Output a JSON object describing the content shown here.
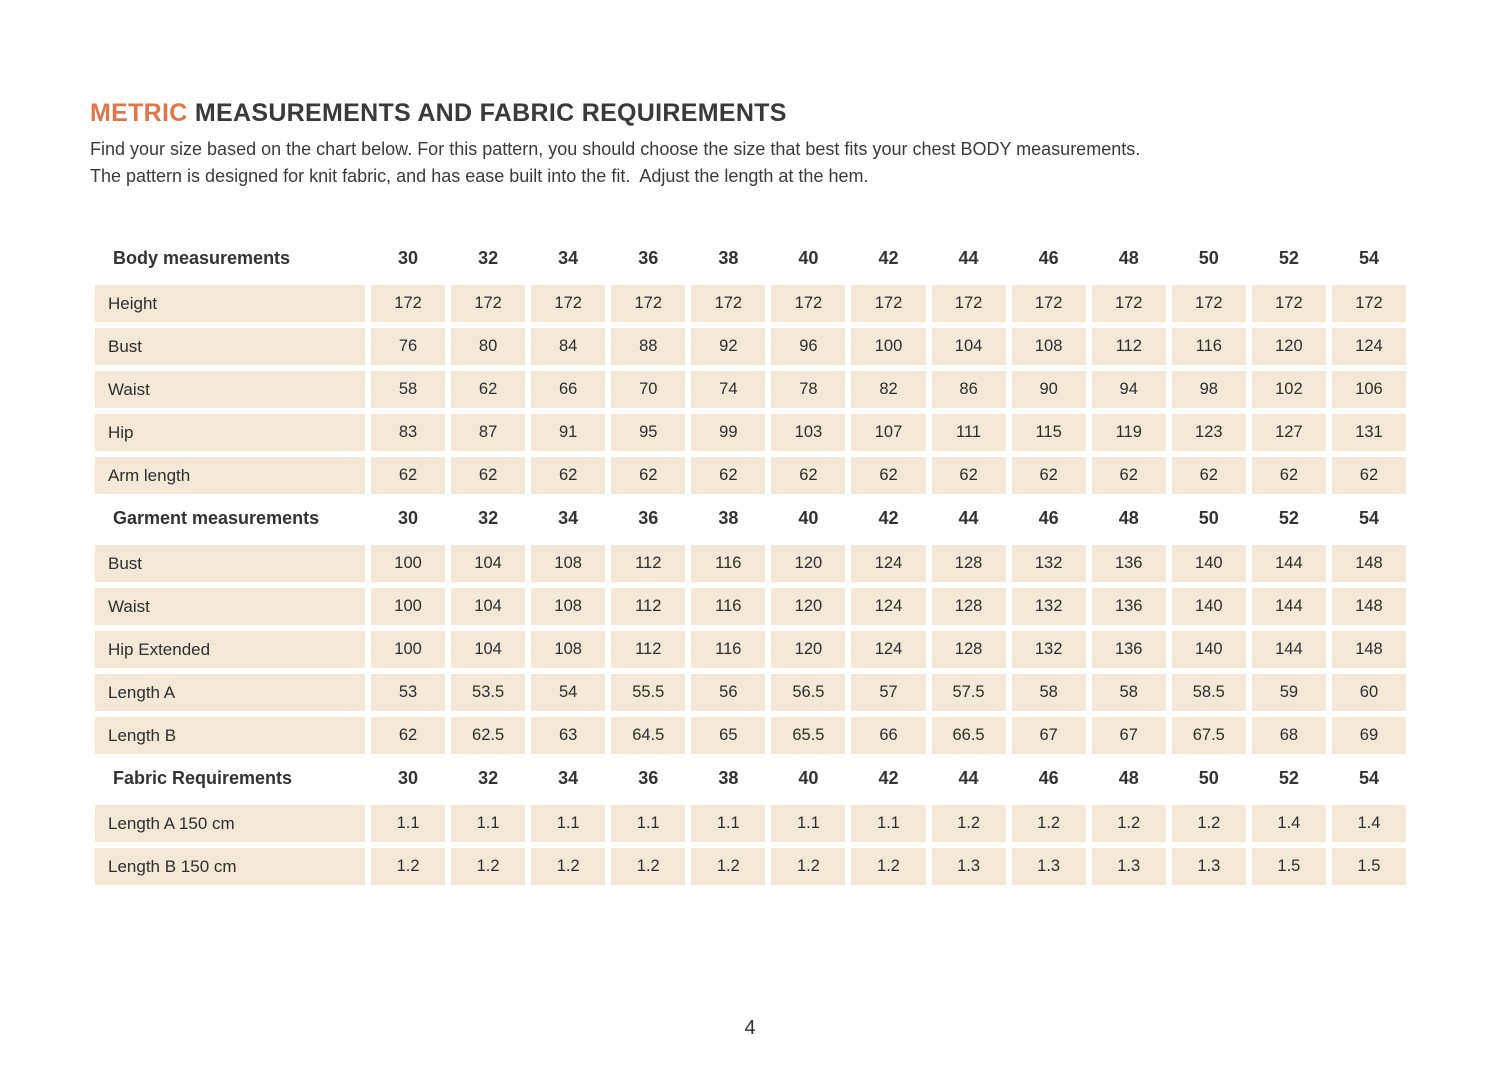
{
  "header": {
    "title_highlight": "METRIC",
    "title_rest": " MEASUREMENTS AND FABRIC REQUIREMENTS",
    "intro_line1": "Find your size based on the chart below. For this pattern, you should choose the size that best fits your chest BODY measurements.",
    "intro_line2": "The pattern is designed for knit fabric, and has ease built into the fit.  Adjust the length at the hem."
  },
  "colors": {
    "accent": "#E0764A",
    "cell_background": "#F2E8D5",
    "text": "#383838"
  },
  "table": {
    "sizes": [
      "30",
      "32",
      "34",
      "36",
      "38",
      "40",
      "42",
      "44",
      "46",
      "48",
      "50",
      "52",
      "54"
    ],
    "sections": [
      {
        "header": "Body measurements",
        "rows": [
          {
            "label": "Height",
            "values": [
              "172",
              "172",
              "172",
              "172",
              "172",
              "172",
              "172",
              "172",
              "172",
              "172",
              "172",
              "172",
              "172"
            ]
          },
          {
            "label": "Bust",
            "values": [
              "76",
              "80",
              "84",
              "88",
              "92",
              "96",
              "100",
              "104",
              "108",
              "112",
              "116",
              "120",
              "124"
            ]
          },
          {
            "label": "Waist",
            "values": [
              "58",
              "62",
              "66",
              "70",
              "74",
              "78",
              "82",
              "86",
              "90",
              "94",
              "98",
              "102",
              "106"
            ]
          },
          {
            "label": "Hip",
            "values": [
              "83",
              "87",
              "91",
              "95",
              "99",
              "103",
              "107",
              "111",
              "115",
              "119",
              "123",
              "127",
              "131"
            ]
          },
          {
            "label": "Arm length",
            "values": [
              "62",
              "62",
              "62",
              "62",
              "62",
              "62",
              "62",
              "62",
              "62",
              "62",
              "62",
              "62",
              "62"
            ]
          }
        ]
      },
      {
        "header": "Garment measurements",
        "rows": [
          {
            "label": "Bust",
            "values": [
              "100",
              "104",
              "108",
              "112",
              "116",
              "120",
              "124",
              "128",
              "132",
              "136",
              "140",
              "144",
              "148"
            ]
          },
          {
            "label": "Waist",
            "values": [
              "100",
              "104",
              "108",
              "112",
              "116",
              "120",
              "124",
              "128",
              "132",
              "136",
              "140",
              "144",
              "148"
            ]
          },
          {
            "label": "Hip Extended",
            "values": [
              "100",
              "104",
              "108",
              "112",
              "116",
              "120",
              "124",
              "128",
              "132",
              "136",
              "140",
              "144",
              "148"
            ]
          },
          {
            "label": "Length A",
            "values": [
              "53",
              "53.5",
              "54",
              "55.5",
              "56",
              "56.5",
              "57",
              "57.5",
              "58",
              "58",
              "58.5",
              "59",
              "60"
            ]
          },
          {
            "label": "Length B",
            "values": [
              "62",
              "62.5",
              "63",
              "64.5",
              "65",
              "65.5",
              "66",
              "66.5",
              "67",
              "67",
              "67.5",
              "68",
              "69"
            ]
          }
        ]
      },
      {
        "header": "Fabric Requirements",
        "rows": [
          {
            "label": "Length A 150 cm",
            "values": [
              "1.1",
              "1.1",
              "1.1",
              "1.1",
              "1.1",
              "1.1",
              "1.1",
              "1.2",
              "1.2",
              "1.2",
              "1.2",
              "1.4",
              "1.4"
            ]
          },
          {
            "label": "Length B 150 cm",
            "values": [
              "1.2",
              "1.2",
              "1.2",
              "1.2",
              "1.2",
              "1.2",
              "1.2",
              "1.3",
              "1.3",
              "1.3",
              "1.3",
              "1.5",
              "1.5"
            ]
          }
        ]
      }
    ]
  },
  "footer": {
    "page_number": "4"
  }
}
